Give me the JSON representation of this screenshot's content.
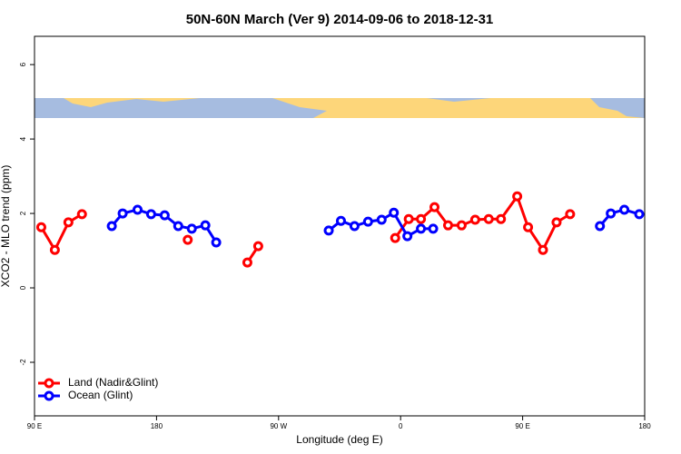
{
  "chart_data": {
    "type": "line",
    "title": "50N-60N March (Ver 9)   2014-09-06 to 2018-12-31",
    "x_label": "Longitude (deg E)",
    "y_label": "XCO2 - MLO trend (ppm)",
    "xlim": [
      90,
      540
    ],
    "ylim": [
      -3.44,
      6.76
    ],
    "xticks": [
      {
        "value": 90,
        "label": "90 E"
      },
      180,
      {
        "value": 270,
        "label": "90 W"
      },
      {
        "value": 360,
        "label": "0"
      },
      {
        "value": 450,
        "label": "90 E"
      },
      {
        "value": 540,
        "label": "180"
      }
    ],
    "yticks": [
      -2,
      0,
      2,
      4,
      6
    ],
    "legend": "bottom-left",
    "series": [
      {
        "name": "Land (Nadir&Glint)",
        "color": "#ff0000",
        "x": [
          95,
          105,
          115,
          125,
          null,
          203,
          null,
          247,
          255,
          null,
          356,
          366,
          375,
          385,
          395,
          405,
          415,
          425,
          434,
          446,
          454,
          465,
          475,
          485
        ],
        "values": [
          1.63,
          1.02,
          1.76,
          1.98,
          null,
          1.29,
          null,
          0.68,
          1.12,
          null,
          1.34,
          1.85,
          1.85,
          2.17,
          1.68,
          1.68,
          1.83,
          1.85,
          1.85,
          2.46,
          1.63,
          1.02,
          1.76,
          1.98
        ]
      },
      {
        "name": "Ocean (Glint)",
        "color": "#0000ff",
        "x": [
          147,
          155,
          166,
          176,
          186,
          196,
          206,
          216,
          224,
          null,
          307,
          316,
          326,
          336,
          346,
          355,
          365,
          375,
          384,
          null,
          507,
          515,
          525,
          536
        ],
        "values": [
          1.66,
          2.0,
          2.1,
          1.98,
          1.95,
          1.66,
          1.59,
          1.68,
          1.22,
          null,
          1.54,
          1.8,
          1.66,
          1.78,
          1.83,
          2.02,
          1.39,
          1.59,
          1.59,
          null,
          1.66,
          2.0,
          2.1,
          1.98
        ]
      }
    ]
  }
}
